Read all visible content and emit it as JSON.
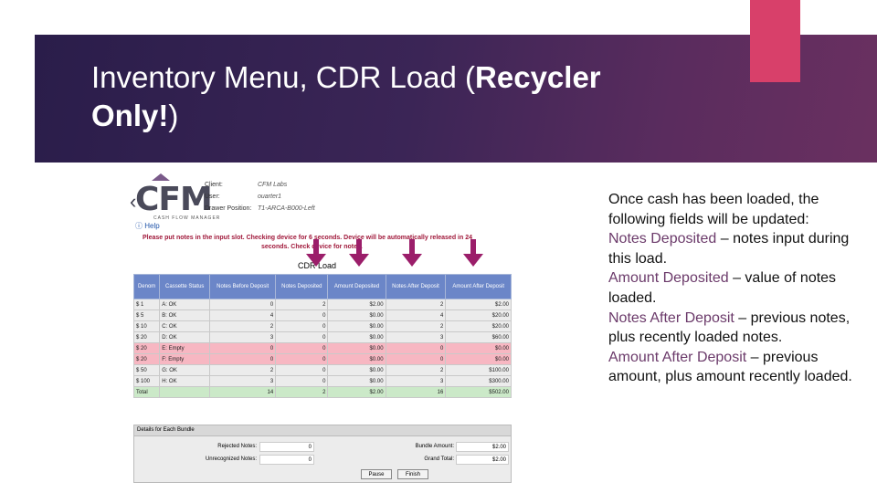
{
  "slide": {
    "title_normal_1": "Inventory Menu, CDR Load (",
    "title_bold_1": "Recycler",
    "title_bold_2": "Only!",
    "title_normal_2": ")"
  },
  "screenshot": {
    "logo_text": "CFM",
    "logo_tagline": "CASH FLOW MANAGER",
    "info": [
      {
        "label": "Client:",
        "value": "CFM Labs"
      },
      {
        "label": "User:",
        "value": "ouarter1"
      },
      {
        "label": "Drawer Position:",
        "value": "T1-ARCA-B000-Left"
      }
    ],
    "help_link": "Help",
    "message_line1": "Please put notes in the input slot. Checking device for 6 seconds. Device will be automatically released in 24",
    "message_line2": "seconds. Check device for notes.",
    "table_title": "CDR Load",
    "columns": [
      "Denom",
      "Cassette Status",
      "Notes Before Deposit",
      "Notes Deposited",
      "Amount Deposited",
      "Notes After Deposit",
      "Amount After Deposit"
    ],
    "rows": [
      {
        "denom": "$ 1",
        "status": "A: OK",
        "before": "0",
        "deposited": "2",
        "amount": "$2.00",
        "after": "2",
        "amount_after": "$2.00",
        "state": "norm"
      },
      {
        "denom": "$ 5",
        "status": "B: OK",
        "before": "4",
        "deposited": "0",
        "amount": "$0.00",
        "after": "4",
        "amount_after": "$20.00",
        "state": "norm"
      },
      {
        "denom": "$ 10",
        "status": "C: OK",
        "before": "2",
        "deposited": "0",
        "amount": "$0.00",
        "after": "2",
        "amount_after": "$20.00",
        "state": "norm"
      },
      {
        "denom": "$ 20",
        "status": "D: OK",
        "before": "3",
        "deposited": "0",
        "amount": "$0.00",
        "after": "3",
        "amount_after": "$60.00",
        "state": "norm"
      },
      {
        "denom": "$ 20",
        "status": "E: Empty",
        "before": "0",
        "deposited": "0",
        "amount": "$0.00",
        "after": "0",
        "amount_after": "$0.00",
        "state": "empty"
      },
      {
        "denom": "$ 20",
        "status": "F: Empty",
        "before": "0",
        "deposited": "0",
        "amount": "$0.00",
        "after": "0",
        "amount_after": "$0.00",
        "state": "empty"
      },
      {
        "denom": "$ 50",
        "status": "G: OK",
        "before": "2",
        "deposited": "0",
        "amount": "$0.00",
        "after": "2",
        "amount_after": "$100.00",
        "state": "norm"
      },
      {
        "denom": "$ 100",
        "status": "H: OK",
        "before": "3",
        "deposited": "0",
        "amount": "$0.00",
        "after": "3",
        "amount_after": "$300.00",
        "state": "norm"
      },
      {
        "denom": "Total",
        "status": "",
        "before": "14",
        "deposited": "2",
        "amount": "$2.00",
        "after": "16",
        "amount_after": "$502.00",
        "state": "total"
      }
    ],
    "details": {
      "header": "Details for Each Bundle",
      "rejected_label": "Rejected Notes:",
      "rejected_value": "0",
      "unrecognized_label": "Unrecognized Notes:",
      "unrecognized_value": "0",
      "bundle_label": "Bundle Amount:",
      "bundle_value": "$2.00",
      "grand_label": "Grand Total:",
      "grand_value": "$2.00",
      "pause_button": "Pause",
      "finish_button": "Finish"
    }
  },
  "description": {
    "intro": "Once cash has been loaded, the following fields will be updated:",
    "items": [
      {
        "term": "Notes Deposited",
        "text": " – notes input during this load."
      },
      {
        "term": "Amount Deposited",
        "text": " – value of notes loaded."
      },
      {
        "term": "Notes After Deposit",
        "text": " – previous notes, plus recently loaded notes."
      },
      {
        "term": "Amount After Deposit",
        "text": " – previous amount, plus amount recently loaded."
      }
    ]
  },
  "colors": {
    "banner": "#3b2556",
    "accent": "#d8406a",
    "highlight_term": "#6b3a6a",
    "arrow": "#9b1e6a",
    "table_header": "#6b86c8",
    "empty_row": "#f7b7c2",
    "total_row": "#cbe9c8"
  }
}
